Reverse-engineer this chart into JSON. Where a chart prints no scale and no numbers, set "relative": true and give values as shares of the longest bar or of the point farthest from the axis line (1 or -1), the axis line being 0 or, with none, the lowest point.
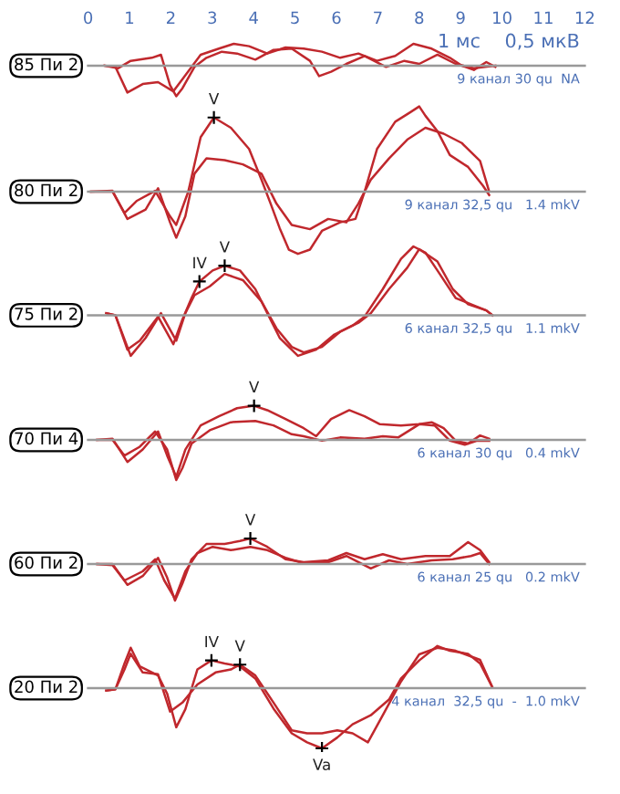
{
  "chart_data": [
    {
      "type": "line",
      "relative": true,
      "ylabel": "85 Пи 2",
      "xlim": [
        0,
        12
      ],
      "xticks": [
        0,
        1,
        2,
        3,
        4,
        5,
        6,
        7,
        8,
        9,
        10,
        11,
        12
      ],
      "tick_labels": "x",
      "annotations": [
        "9 канал 30 qu  NA",
        "1 мс    0,5 мкВ"
      ],
      "series": [
        {
          "color": "#c0282d",
          "x": [
            0.4,
            0.66,
            0.95,
            1.32,
            1.69,
            2.06,
            2.28,
            2.72,
            3.16,
            3.52,
            3.89,
            4.33,
            4.77,
            5.21,
            5.65,
            6.09,
            6.53,
            6.98,
            7.42,
            7.86,
            8.3,
            8.74,
            9.03,
            9.32,
            9.62,
            9.84
          ],
          "values": [
            0,
            -0.04,
            -0.88,
            -0.6,
            -0.54,
            -0.84,
            -0.44,
            0.36,
            0.56,
            0.72,
            0.64,
            0.4,
            0.6,
            0.56,
            0.46,
            0.26,
            0.4,
            0.16,
            0.32,
            0.72,
            0.56,
            0.26,
            0,
            -0.14,
            0.12,
            -0.04
          ]
        },
        {
          "color": "#c0282d",
          "x": [
            0.4,
            0.73,
            1.03,
            1.54,
            1.76,
            1.98,
            2.13,
            2.28,
            2.57,
            2.86,
            3.23,
            3.6,
            4.04,
            4.48,
            4.92,
            5.36,
            5.58,
            5.87,
            6.24,
            6.68,
            7.2,
            7.64,
            8.0,
            8.44,
            8.88,
            9.32,
            9.84
          ],
          "values": [
            0,
            -0.08,
            0.16,
            0.26,
            0.36,
            -0.64,
            -1.0,
            -0.74,
            -0.04,
            0.26,
            0.46,
            0.4,
            0.2,
            0.52,
            0.56,
            0.16,
            -0.34,
            -0.2,
            0.06,
            0.32,
            -0.04,
            0.16,
            0.06,
            0.36,
            0.06,
            -0.08,
            0
          ]
        }
      ]
    },
    {
      "type": "line",
      "relative": true,
      "ylabel": "80 Пи 2",
      "xlim": [
        0,
        12
      ],
      "xticks": [
        0,
        1,
        2,
        3,
        4,
        5,
        6,
        7,
        8,
        9,
        10,
        11,
        12
      ],
      "tick_labels": false,
      "annotations": [
        "9 канал 32,5 qu   1.4 mkV",
        {
          "text": "V",
          "x": 3.04,
          "y": 0.87
        }
      ],
      "series": [
        {
          "color": "#c0282d",
          "x": [
            0.07,
            0.59,
            0.88,
            1.17,
            1.62,
            1.98,
            2.13,
            2.42,
            2.72,
            3.04,
            3.45,
            3.89,
            4.19,
            4.41,
            4.63,
            4.85,
            5.07,
            5.36,
            5.65,
            6.09,
            6.46,
            6.68,
            6.98,
            7.42,
            7.78,
            8.0,
            8.15,
            8.44,
            8.74,
            9.18,
            9.54,
            9.69
          ],
          "values": [
            0,
            0,
            -0.25,
            -0.11,
            0.01,
            -0.29,
            -0.39,
            0,
            0.64,
            0.87,
            0.75,
            0.5,
            0.14,
            -0.14,
            -0.43,
            -0.68,
            -0.73,
            -0.68,
            -0.46,
            -0.36,
            -0.32,
            0,
            0.5,
            0.82,
            0.93,
            1.0,
            0.89,
            0.71,
            0.43,
            0.29,
            0.07,
            -0.04
          ]
        },
        {
          "color": "#c0282d",
          "x": [
            0.07,
            0.59,
            0.95,
            1.39,
            1.69,
            1.98,
            2.13,
            2.35,
            2.57,
            2.86,
            3.3,
            3.74,
            4.19,
            4.55,
            4.92,
            5.36,
            5.8,
            6.24,
            6.53,
            6.83,
            7.27,
            7.71,
            8.15,
            8.59,
            9.03,
            9.47,
            9.69
          ],
          "values": [
            0,
            0.01,
            -0.32,
            -0.21,
            0.04,
            -0.36,
            -0.54,
            -0.29,
            0.21,
            0.39,
            0.37,
            0.32,
            0.21,
            -0.14,
            -0.39,
            -0.44,
            -0.32,
            -0.36,
            -0.14,
            0.14,
            0.39,
            0.61,
            0.75,
            0.68,
            0.57,
            0.36,
            0
          ]
        }
      ]
    },
    {
      "type": "line",
      "relative": true,
      "ylabel": "75 Пи 2",
      "xlim": [
        0,
        12
      ],
      "xticks": [
        0,
        1,
        2,
        3,
        4,
        5,
        6,
        7,
        8,
        9,
        10,
        11,
        12
      ],
      "tick_labels": false,
      "annotations": [
        "6 канал 32,5 qu   1.1 mkV",
        {
          "text": "IV",
          "x": 2.69,
          "y": 0.49
        },
        {
          "text": "V",
          "x": 3.3,
          "y": 0.72
        }
      ],
      "series": [
        {
          "color": "#c0282d",
          "x": [
            0.44,
            0.66,
            0.95,
            1.25,
            1.69,
            2.06,
            2.28,
            2.5,
            2.69,
            3.01,
            3.3,
            3.67,
            4.04,
            4.33,
            4.63,
            5.07,
            5.51,
            5.95,
            6.39,
            6.68,
            7.12,
            7.56,
            7.86,
            8.15,
            8.44,
            8.88,
            9.25,
            9.62,
            9.77
          ],
          "values": [
            0.03,
            0,
            -0.5,
            -0.37,
            -0.02,
            -0.42,
            -0.06,
            0.25,
            0.49,
            0.65,
            0.72,
            0.65,
            0.38,
            0.03,
            -0.33,
            -0.59,
            -0.5,
            -0.28,
            -0.15,
            -0.02,
            0.38,
            0.82,
            1.0,
            0.91,
            0.65,
            0.25,
            0.16,
            0.07,
            0
          ]
        },
        {
          "color": "#c0282d",
          "x": [
            0.44,
            0.66,
            1.03,
            1.39,
            1.76,
            2.13,
            2.35,
            2.57,
            2.94,
            3.3,
            3.74,
            4.19,
            4.55,
            4.92,
            5.21,
            5.65,
            6.09,
            6.53,
            6.83,
            7.27,
            7.71,
            8.0,
            8.44,
            8.81,
            9.18,
            9.62,
            9.77
          ],
          "values": [
            0.03,
            0,
            -0.59,
            -0.33,
            0.03,
            -0.37,
            0.03,
            0.29,
            0.42,
            0.6,
            0.51,
            0.2,
            -0.19,
            -0.46,
            -0.54,
            -0.46,
            -0.24,
            -0.11,
            0.03,
            0.38,
            0.69,
            0.96,
            0.78,
            0.38,
            0.16,
            0.07,
            0
          ]
        }
      ]
    },
    {
      "type": "line",
      "relative": true,
      "ylabel": "70 Пи 4",
      "xlim": [
        0,
        12
      ],
      "xticks": [
        0,
        1,
        2,
        3,
        4,
        5,
        6,
        7,
        8,
        9,
        10,
        11,
        12
      ],
      "tick_labels": false,
      "annotations": [
        "6 канал 30 qu   0.4 mkV",
        {
          "text": "V",
          "x": 4.01,
          "y": 0.85
        }
      ],
      "series": [
        {
          "color": "#c0282d",
          "x": [
            0.22,
            0.59,
            0.95,
            1.32,
            1.69,
            1.91,
            2.13,
            2.35,
            2.72,
            3.16,
            3.6,
            4.01,
            4.33,
            4.77,
            5.21,
            5.51,
            5.87,
            6.31,
            6.68,
            7.05,
            7.56,
            8.0,
            8.3,
            8.59,
            8.88,
            9.18,
            9.47,
            9.69
          ],
          "values": [
            0,
            0.03,
            -0.55,
            -0.24,
            0.21,
            -0.39,
            -0.92,
            -0.24,
            0.36,
            0.59,
            0.79,
            0.85,
            0.74,
            0.52,
            0.29,
            0.09,
            0.52,
            0.74,
            0.59,
            0.39,
            0.36,
            0.39,
            0.44,
            0.29,
            -0.02,
            -0.09,
            0.11,
            0.03
          ]
        },
        {
          "color": "#c0282d",
          "x": [
            0.22,
            0.59,
            0.88,
            1.25,
            1.62,
            1.91,
            2.13,
            2.28,
            2.5,
            2.94,
            3.45,
            4.04,
            4.48,
            4.92,
            5.21,
            5.65,
            6.09,
            6.68,
            7.12,
            7.49,
            8.0,
            8.37,
            8.74,
            9.1,
            9.4,
            9.69
          ],
          "values": [
            0,
            0,
            -0.39,
            -0.17,
            0.21,
            -0.24,
            -1.0,
            -0.7,
            -0.09,
            0.24,
            0.44,
            0.47,
            0.36,
            0.14,
            0.09,
            -0.02,
            0.06,
            0.03,
            0.09,
            0.06,
            0.39,
            0.36,
            -0.02,
            -0.12,
            -0.02,
            -0.02
          ]
        }
      ]
    },
    {
      "type": "line",
      "relative": true,
      "ylabel": "60 Пи 2",
      "xlim": [
        0,
        12
      ],
      "xticks": [
        0,
        1,
        2,
        3,
        4,
        5,
        6,
        7,
        8,
        9,
        10,
        11,
        12
      ],
      "tick_labels": false,
      "annotations": [
        "6 канал 25 qu   0.2 mkV",
        {
          "text": "V",
          "x": 3.92,
          "y": 0.7
        }
      ],
      "series": [
        {
          "color": "#c0282d",
          "x": [
            0.22,
            0.59,
            0.95,
            1.32,
            1.69,
            1.91,
            2.1,
            2.28,
            2.5,
            2.86,
            3.3,
            3.67,
            3.92,
            4.33,
            4.77,
            5.21,
            5.8,
            6.24,
            6.68,
            7.12,
            7.56,
            8.15,
            8.74,
            9.18,
            9.47,
            9.69
          ],
          "values": [
            0,
            0,
            -0.57,
            -0.33,
            0.17,
            -0.37,
            -1.0,
            -0.53,
            0.13,
            0.55,
            0.55,
            0.63,
            0.7,
            0.47,
            0.13,
            0.05,
            0.1,
            0.3,
            0.13,
            0.27,
            0.13,
            0.22,
            0.22,
            0.6,
            0.38,
            0.05
          ]
        },
        {
          "color": "#c0282d",
          "x": [
            0.22,
            0.59,
            0.88,
            1.32,
            1.62,
            1.84,
            2.1,
            2.35,
            2.64,
            3.01,
            3.45,
            3.92,
            4.33,
            4.77,
            5.21,
            5.8,
            6.24,
            6.83,
            7.27,
            7.71,
            8.3,
            8.81,
            9.25,
            9.47,
            9.69
          ],
          "values": [
            0,
            -0.03,
            -0.45,
            -0.2,
            0.13,
            -0.45,
            -0.95,
            -0.2,
            0.3,
            0.47,
            0.38,
            0.47,
            0.38,
            0.17,
            0.02,
            0.05,
            0.22,
            -0.12,
            0.1,
            0,
            0.1,
            0.13,
            0.22,
            0.3,
            0
          ]
        }
      ]
    },
    {
      "type": "line",
      "relative": true,
      "ylabel": "20 Пи 2",
      "xlim": [
        0,
        12
      ],
      "xticks": [
        0,
        1,
        2,
        3,
        4,
        5,
        6,
        7,
        8,
        9,
        10,
        11,
        12
      ],
      "tick_labels": false,
      "annotations": [
        "4 канал  32,5 qu  -  1.0 mkV",
        {
          "text": "IV",
          "x": 2.98,
          "y": 0.46
        },
        {
          "text": "V",
          "x": 3.67,
          "y": 0.39
        },
        {
          "text": "Va",
          "x": 5.65,
          "y": -1.0
        }
      ],
      "series": [
        {
          "color": "#c0282d",
          "x": [
            0.44,
            0.66,
            0.88,
            1.03,
            1.25,
            1.69,
            1.91,
            2.13,
            2.35,
            2.64,
            2.98,
            3.3,
            3.67,
            4.04,
            4.48,
            4.92,
            5.29,
            5.65,
            6.02,
            6.39,
            6.83,
            7.27,
            7.56,
            8.0,
            8.44,
            8.74,
            9.18,
            9.47,
            9.77
          ],
          "values": [
            -0.04,
            -0.02,
            0.41,
            0.67,
            0.36,
            0.21,
            -0.09,
            -0.65,
            -0.35,
            0.31,
            0.46,
            0.41,
            0.36,
            0.16,
            -0.34,
            -0.75,
            -0.9,
            -1.0,
            -0.82,
            -0.6,
            -0.45,
            -0.19,
            0.16,
            0.46,
            0.7,
            0.62,
            0.57,
            0.41,
            0.01
          ]
        },
        {
          "color": "#c0282d",
          "x": [
            0.44,
            0.66,
            0.88,
            1.03,
            1.32,
            1.69,
            1.98,
            2.28,
            2.64,
            3.08,
            3.45,
            3.67,
            4.04,
            4.48,
            4.92,
            5.29,
            5.65,
            6.02,
            6.39,
            6.76,
            7.12,
            7.56,
            8.0,
            8.44,
            8.88,
            9.47,
            9.77
          ],
          "values": [
            -0.04,
            -0.02,
            0.31,
            0.57,
            0.26,
            0.23,
            -0.39,
            -0.24,
            0.06,
            0.26,
            0.31,
            0.39,
            0.21,
            -0.24,
            -0.7,
            -0.75,
            -0.75,
            -0.7,
            -0.75,
            -0.9,
            -0.45,
            0.11,
            0.56,
            0.67,
            0.62,
            0.47,
            0.01
          ]
        }
      ]
    }
  ]
}
